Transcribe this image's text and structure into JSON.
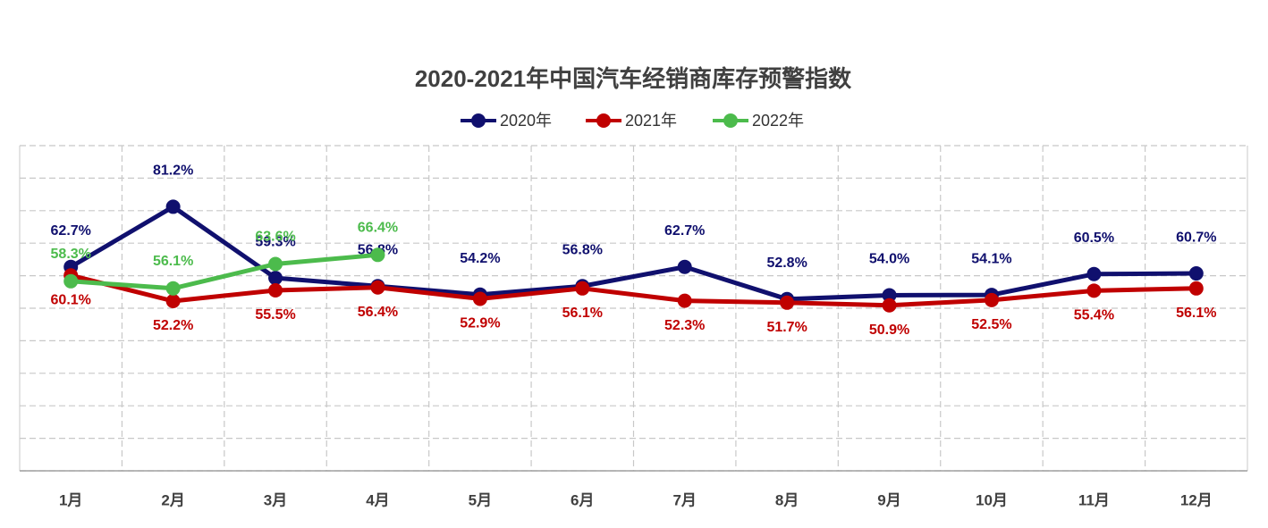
{
  "chart_data": {
    "type": "line",
    "title": "2020-2021年中国汽车经销商库存预警指数",
    "categories": [
      "1月",
      "2月",
      "3月",
      "4月",
      "5月",
      "6月",
      "7月",
      "8月",
      "9月",
      "10月",
      "11月",
      "12月"
    ],
    "series": [
      {
        "name": "2020年",
        "color": "#10106e",
        "values": [
          62.7,
          81.2,
          59.3,
          56.8,
          54.2,
          56.8,
          62.7,
          52.8,
          54.0,
          54.1,
          60.5,
          60.7
        ],
        "value_labels": [
          "62.7%",
          "81.2%",
          "59.3%",
          "56.8%",
          "54.2%",
          "56.8%",
          "62.7%",
          "52.8%",
          "54.0%",
          "54.1%",
          "60.5%",
          "60.7%"
        ]
      },
      {
        "name": "2021年",
        "color": "#c00000",
        "values": [
          60.1,
          52.2,
          55.5,
          56.4,
          52.9,
          56.1,
          52.3,
          51.7,
          50.9,
          52.5,
          55.4,
          56.1
        ],
        "value_labels": [
          "60.1%",
          "52.2%",
          "55.5%",
          "56.4%",
          "52.9%",
          "56.1%",
          "52.3%",
          "51.7%",
          "50.9%",
          "52.5%",
          "55.4%",
          "56.1%"
        ]
      },
      {
        "name": "2022年",
        "color": "#4cbb4c",
        "values": [
          58.3,
          56.1,
          63.6,
          66.4,
          null,
          null,
          null,
          null,
          null,
          null,
          null,
          null
        ],
        "value_labels": [
          "58.3%",
          "56.1%",
          "63.6%",
          "66.4%",
          null,
          null,
          null,
          null,
          null,
          null,
          null,
          null
        ]
      }
    ],
    "ylim": [
      0,
      100
    ],
    "yticks": [
      0,
      10,
      20,
      30,
      40,
      50,
      60,
      70,
      80,
      90,
      100
    ],
    "grid": true
  }
}
